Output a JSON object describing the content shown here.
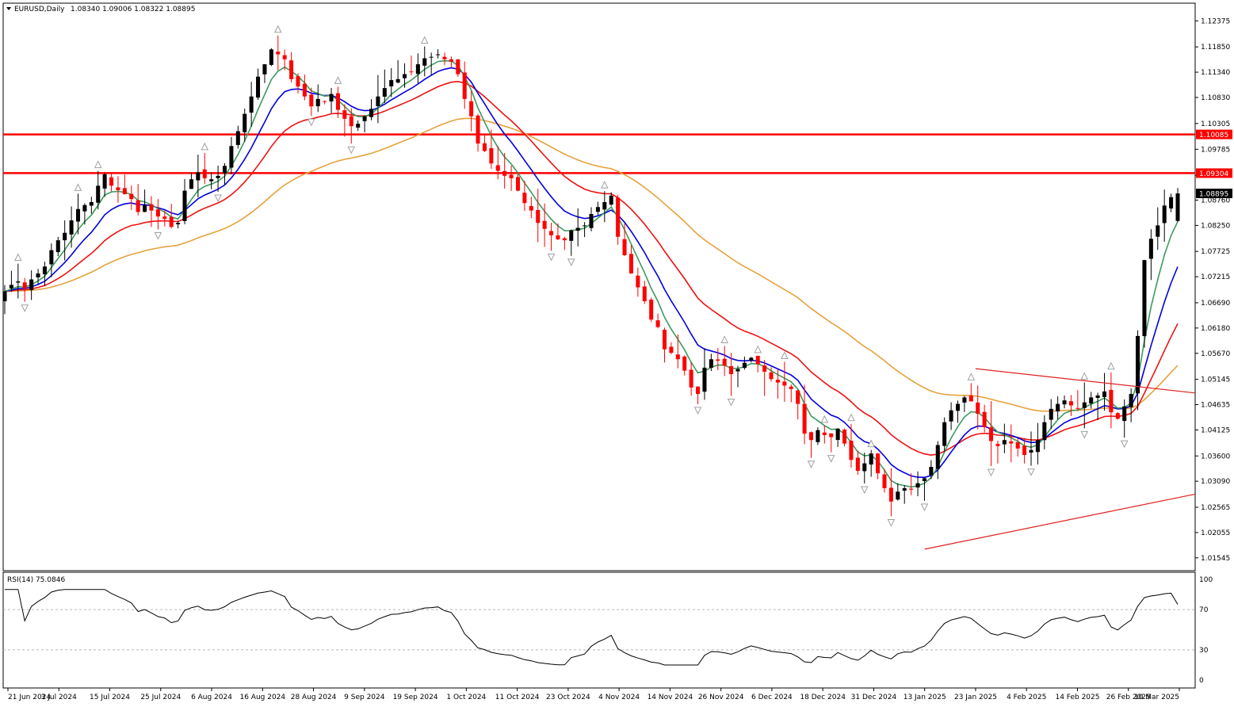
{
  "header": {
    "symbol": "EURUSD,Daily",
    "ohlc": "1.08340 1.09006 1.08322 1.08895"
  },
  "rsi_panel": {
    "title": "RSI(14) 75.0846",
    "levels": [
      "100",
      "70",
      "30",
      "0"
    ]
  },
  "colors": {
    "bull": "#000000",
    "bear": "#ff0000",
    "ma_green": "#3c9a5f",
    "ma_blue": "#0000dd",
    "ma_red": "#ee1111",
    "ma_orange": "#e6a23c",
    "hline": "#ff0000",
    "trendline": "#e02020",
    "label_red_bg": "#ff0000",
    "label_black_bg": "#000000",
    "fractal": "#a0a0a0"
  },
  "chart_data": {
    "type": "candlestick",
    "symbol": "EURUSD",
    "timeframe": "Daily",
    "last_ohlc": {
      "open": 1.0834,
      "high": 1.09006,
      "low": 1.08322,
      "close": 1.08895
    },
    "price_range": [
      1.0135,
      1.127
    ],
    "y_ticks": [
      "1.12375",
      "1.11850",
      "1.11340",
      "1.10830",
      "1.10305",
      "1.09785",
      "1.09260",
      "1.08760",
      "1.08250",
      "1.07725",
      "1.07215",
      "1.06690",
      "1.06180",
      "1.05670",
      "1.05145",
      "1.04635",
      "1.04125",
      "1.03600",
      "1.03090",
      "1.02565",
      "1.02055",
      "1.01545"
    ],
    "x_ticks": [
      "21 Jun 2024",
      "3 Jul 2024",
      "15 Jul 2024",
      "25 Jul 2024",
      "6 Aug 2024",
      "16 Aug 2024",
      "28 Aug 2024",
      "9 Sep 2024",
      "19 Sep 2024",
      "1 Oct 2024",
      "11 Oct 2024",
      "23 Oct 2024",
      "4 Nov 2024",
      "14 Nov 2024",
      "26 Nov 2024",
      "6 Dec 2024",
      "18 Dec 2024",
      "31 Dec 2024",
      "13 Jan 2025",
      "23 Jan 2025",
      "4 Feb 2025",
      "14 Feb 2025",
      "26 Feb 2025",
      "10 Mar 2025"
    ],
    "horizontal_lines": [
      {
        "price": 1.10085,
        "label": "1.10085"
      },
      {
        "price": 1.09304,
        "label": "1.09304"
      }
    ],
    "current_price_label": "1.08895",
    "closes": [
      1.0692,
      1.0705,
      1.0712,
      1.0698,
      1.0716,
      1.0728,
      1.0742,
      1.0775,
      1.0795,
      1.081,
      1.0835,
      1.0858,
      1.0866,
      1.0872,
      1.0905,
      1.0928,
      1.0905,
      1.0896,
      1.0888,
      1.0878,
      1.0852,
      1.0866,
      1.0855,
      1.0843,
      1.0838,
      1.0822,
      1.083,
      1.0895,
      1.0918,
      1.0932,
      1.092,
      1.0918,
      1.0925,
      1.0945,
      1.0985,
      1.1015,
      1.105,
      1.1085,
      1.1125,
      1.115,
      1.118,
      1.117,
      1.116,
      1.112,
      1.1105,
      1.1085,
      1.1065,
      1.108,
      1.1075,
      1.109,
      1.1058,
      1.104,
      1.1025,
      1.103,
      1.1045,
      1.106,
      1.1085,
      1.1102,
      1.1118,
      1.112,
      1.113,
      1.1135,
      1.115,
      1.1162,
      1.1165,
      1.117,
      1.116,
      1.1155,
      1.113,
      1.108,
      1.1045,
      1.099,
      1.0975,
      1.095,
      1.0935,
      1.0925,
      1.092,
      1.0895,
      1.087,
      1.0855,
      1.083,
      1.0818,
      1.0805,
      1.0797,
      1.0795,
      1.0815,
      1.082,
      1.0825,
      1.0848,
      1.0862,
      1.0872,
      1.0885,
      1.0802,
      1.0765,
      1.0728,
      1.07,
      1.0672,
      1.0635,
      1.062,
      1.0575,
      1.0568,
      1.0555,
      1.0532,
      1.0498,
      1.0485,
      1.0538,
      1.0555,
      1.0552,
      1.0542,
      1.0525,
      1.0535,
      1.0548,
      1.0558,
      1.0545,
      1.053,
      1.0515,
      1.0508,
      1.0502,
      1.0495,
      1.0465,
      1.0405,
      1.0392,
      1.0412,
      1.0402,
      1.0398,
      1.0415,
      1.0385,
      1.0352,
      1.033,
      1.0345,
      1.0365,
      1.0325,
      1.0295,
      1.0268,
      1.0288,
      1.0295,
      1.0292,
      1.0305,
      1.0315,
      1.0338,
      1.0382,
      1.0428,
      1.0452,
      1.0465,
      1.0478,
      1.047,
      1.0445,
      1.0418,
      1.039,
      1.038,
      1.0392,
      1.0385,
      1.0375,
      1.0362,
      1.0372,
      1.0392,
      1.0428,
      1.0455,
      1.0465,
      1.0472,
      1.0462,
      1.0455,
      1.0468,
      1.0478,
      1.0482,
      1.049,
      1.0448,
      1.0435,
      1.046,
      1.0485,
      1.0602,
      1.0755,
      1.0798,
      1.0825,
      1.0865,
      1.0882,
      1.08895
    ],
    "moving_averages": [
      {
        "type": "EMA",
        "period": 5,
        "color": "#3c9a5f"
      },
      {
        "type": "EMA",
        "period": 10,
        "color": "#0000dd"
      },
      {
        "type": "EMA",
        "period": 21,
        "color": "#ee1111"
      },
      {
        "type": "EMA",
        "period": 50,
        "color": "#e6a23c"
      }
    ],
    "trendlines": [
      {
        "from": "23 Jan 2025",
        "to": "10 Mar 2025",
        "p1": 1.0536,
        "p2": 1.0487
      },
      {
        "from": "13 Jan 2025",
        "to": "10 Mar 2025",
        "p1": 1.0172,
        "p2": 1.0283
      }
    ],
    "rsi": {
      "period": 14,
      "current": 75.0846,
      "levels": [
        70,
        30
      ],
      "ylim": [
        0,
        100
      ]
    }
  }
}
